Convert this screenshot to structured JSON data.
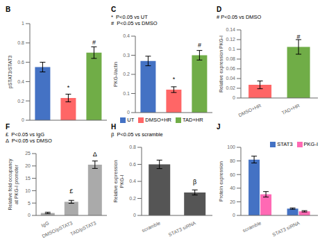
{
  "chart_data": [
    {
      "type": "bar",
      "title": "B",
      "categories": [
        "UT",
        "DMSO+HR",
        "TAD+HR"
      ],
      "values": [
        0.55,
        0.23,
        0.7
      ],
      "errors": [
        0.05,
        0.04,
        0.06
      ],
      "colors": [
        "#4472C4",
        "#FF6666",
        "#70AD47"
      ],
      "ylabel": "pSTAT3/STAT3",
      "ylim": [
        0,
        1.0
      ],
      "yticks": [
        0,
        0.2,
        0.4,
        0.6,
        0.8,
        1.0
      ],
      "tick_labels": "y",
      "annotations": [
        {
          "category": "DMSO+HR",
          "text": "*"
        },
        {
          "category": "TAD+HR",
          "text": "#"
        }
      ]
    },
    {
      "type": "bar",
      "title": "C",
      "categories": [
        "UT",
        "DMSO+HR",
        "TAD+HR"
      ],
      "values": [
        0.27,
        0.12,
        0.3
      ],
      "errors": [
        0.025,
        0.015,
        0.025
      ],
      "colors": [
        "#4472C4",
        "#FF6666",
        "#70AD47"
      ],
      "ylabel": "PKG-I/actin",
      "ylim": [
        0,
        0.4
      ],
      "yticks": [
        0,
        0.1,
        0.2,
        0.3,
        0.4
      ],
      "tick_labels": "y",
      "legend": "bottom",
      "annotations": [
        {
          "text": "*  P<0.05 vs UT"
        },
        {
          "text": "#  P<0.05 vs DMSO"
        },
        {
          "category": "DMSO+HR",
          "text": "*"
        },
        {
          "category": "TAD+HR",
          "text": "#"
        }
      ]
    },
    {
      "type": "bar",
      "title": "D",
      "categories": [
        "DMSO+HR",
        "TAD+HR"
      ],
      "values": [
        0.027,
        0.105
      ],
      "errors": [
        0.008,
        0.015
      ],
      "colors": [
        "#FF6666",
        "#70AD47"
      ],
      "ylabel": "Relative expression PKG-I",
      "ylim": [
        0,
        0.14
      ],
      "yticks": [
        0,
        0.02,
        0.04,
        0.06,
        0.08,
        0.1,
        0.12,
        0.14
      ],
      "annotations": [
        {
          "text": "# P<0.05 vs DMSO"
        },
        {
          "category": "TAD+HR",
          "text": "#"
        }
      ]
    },
    {
      "type": "bar",
      "title": "F",
      "categories": [
        "IgG",
        "DMSO/pSTAT3",
        "TAD/pSTAT3"
      ],
      "values": [
        1.0,
        5.5,
        20.5
      ],
      "errors": [
        0.3,
        0.6,
        1.5
      ],
      "colors": [
        "#AAAAAA",
        "#AAAAAA",
        "#AAAAAA"
      ],
      "ylabel": "Relative fold occupancy\nat PKG-I promoter",
      "ylim": [
        0,
        25
      ],
      "yticks": [
        0,
        5,
        10,
        15,
        20,
        25
      ],
      "annotations": [
        {
          "text": "£  P<0.05 vs IgG"
        },
        {
          "text": "Δ  P<0.05 vs DMSO"
        },
        {
          "category": "DMSO/pSTAT3",
          "text": "£"
        },
        {
          "category": "TAD/pSTAT3",
          "text": "Δ"
        }
      ]
    },
    {
      "type": "bar",
      "title": "H",
      "categories": [
        "scramble",
        "STAT3 siRNA"
      ],
      "values": [
        0.6,
        0.27
      ],
      "errors": [
        0.05,
        0.03
      ],
      "colors": [
        "#555555",
        "#555555"
      ],
      "ylabel": "Relative expression\nPKG-I",
      "ylim": [
        0,
        0.8
      ],
      "yticks": [
        0,
        0.2,
        0.4,
        0.6,
        0.8
      ],
      "annotations": [
        {
          "text": "β  P<0.05 vs scramble"
        },
        {
          "category": "STAT3 siRNA",
          "text": "β"
        }
      ]
    },
    {
      "type": "bar",
      "title": "J",
      "categories": [
        "scramble",
        "STAT3 siRNA"
      ],
      "series": [
        {
          "name": "STAT3",
          "color": "#4472C4",
          "values": [
            82,
            10
          ],
          "errors": [
            5,
            1
          ]
        },
        {
          "name": "PKG-I",
          "color": "#FF69B4",
          "values": [
            31,
            6
          ],
          "errors": [
            4,
            1
          ]
        }
      ],
      "ylabel": "Protein expression",
      "ylim": [
        0,
        100
      ],
      "yticks": [
        0,
        20,
        40,
        60,
        80,
        100
      ],
      "legend": "upper right"
    }
  ]
}
